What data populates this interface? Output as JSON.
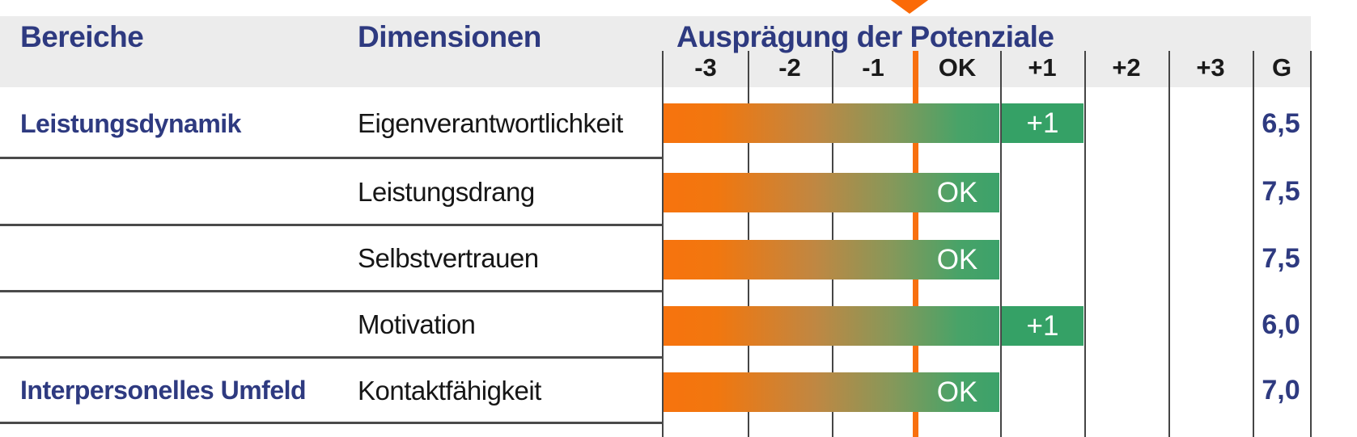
{
  "colors": {
    "orange": "#F8700F",
    "green": "#35A166",
    "navy": "#2E3A80",
    "header_bg": "#ECECEC",
    "grid": "#454545"
  },
  "marker": {
    "icon": "down-arrow"
  },
  "chart_data": {
    "type": "bar",
    "title": "Ausprägung der Potenziale",
    "column_headers": {
      "bereiche": "Bereiche",
      "dimensionen": "Dimensionen"
    },
    "scale_labels": [
      "-3",
      "-2",
      "-1",
      "OK",
      "+1",
      "+2",
      "+3",
      "G"
    ],
    "rows": [
      {
        "bereich": "Leistungsdynamik",
        "dimension": "Eigenverantwortlichkeit",
        "rating": "+1",
        "g_value": "6,5"
      },
      {
        "bereich": "",
        "dimension": "Leistungsdrang",
        "rating": "OK",
        "g_value": "7,5"
      },
      {
        "bereich": "",
        "dimension": "Selbstvertrauen",
        "rating": "OK",
        "g_value": "7,5"
      },
      {
        "bereich": "",
        "dimension": "Motivation",
        "rating": "+1",
        "g_value": "6,0"
      },
      {
        "bereich": "Interpersonelles Umfeld",
        "dimension": "Kontaktfähigkeit",
        "rating": "OK",
        "g_value": "7,0"
      }
    ]
  }
}
